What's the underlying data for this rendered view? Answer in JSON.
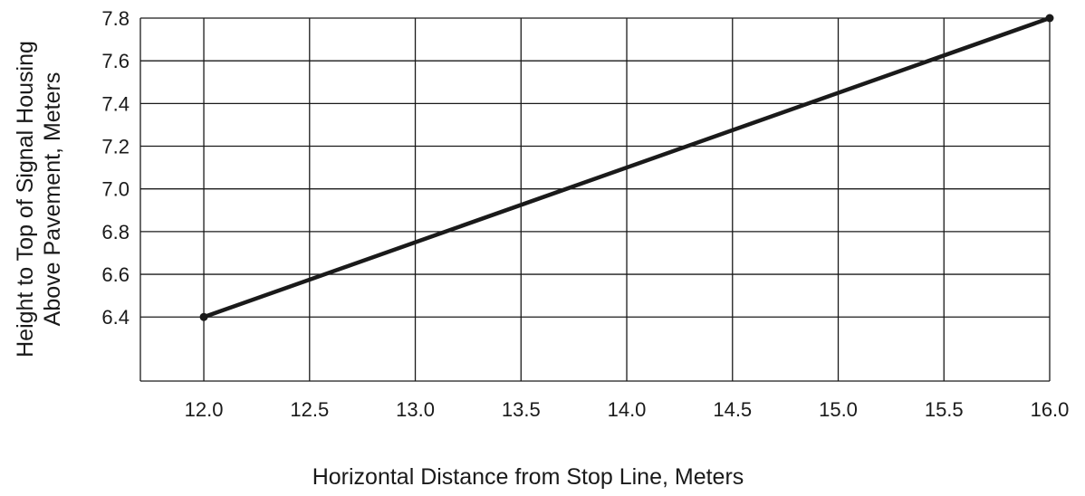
{
  "chart_data": {
    "type": "line",
    "title": "",
    "xlabel": "Horizontal Distance from Stop Line, Meters",
    "ylabel_lines": [
      "Height to Top of Signal Housing",
      "Above Pavement, Meters"
    ],
    "xlim": [
      11.7,
      16.0
    ],
    "ylim": [
      6.1,
      7.8
    ],
    "x_ticks": [
      "12.0",
      "12.5",
      "13.0",
      "13.5",
      "14.0",
      "14.5",
      "15.0",
      "15.5",
      "16.0"
    ],
    "y_ticks": [
      "6.4",
      "6.6",
      "6.8",
      "7.0",
      "7.2",
      "7.4",
      "7.6",
      "7.8"
    ],
    "grid": true,
    "series": [
      {
        "x": [
          12.0,
          16.0
        ],
        "y": [
          6.4,
          7.8
        ]
      }
    ]
  }
}
